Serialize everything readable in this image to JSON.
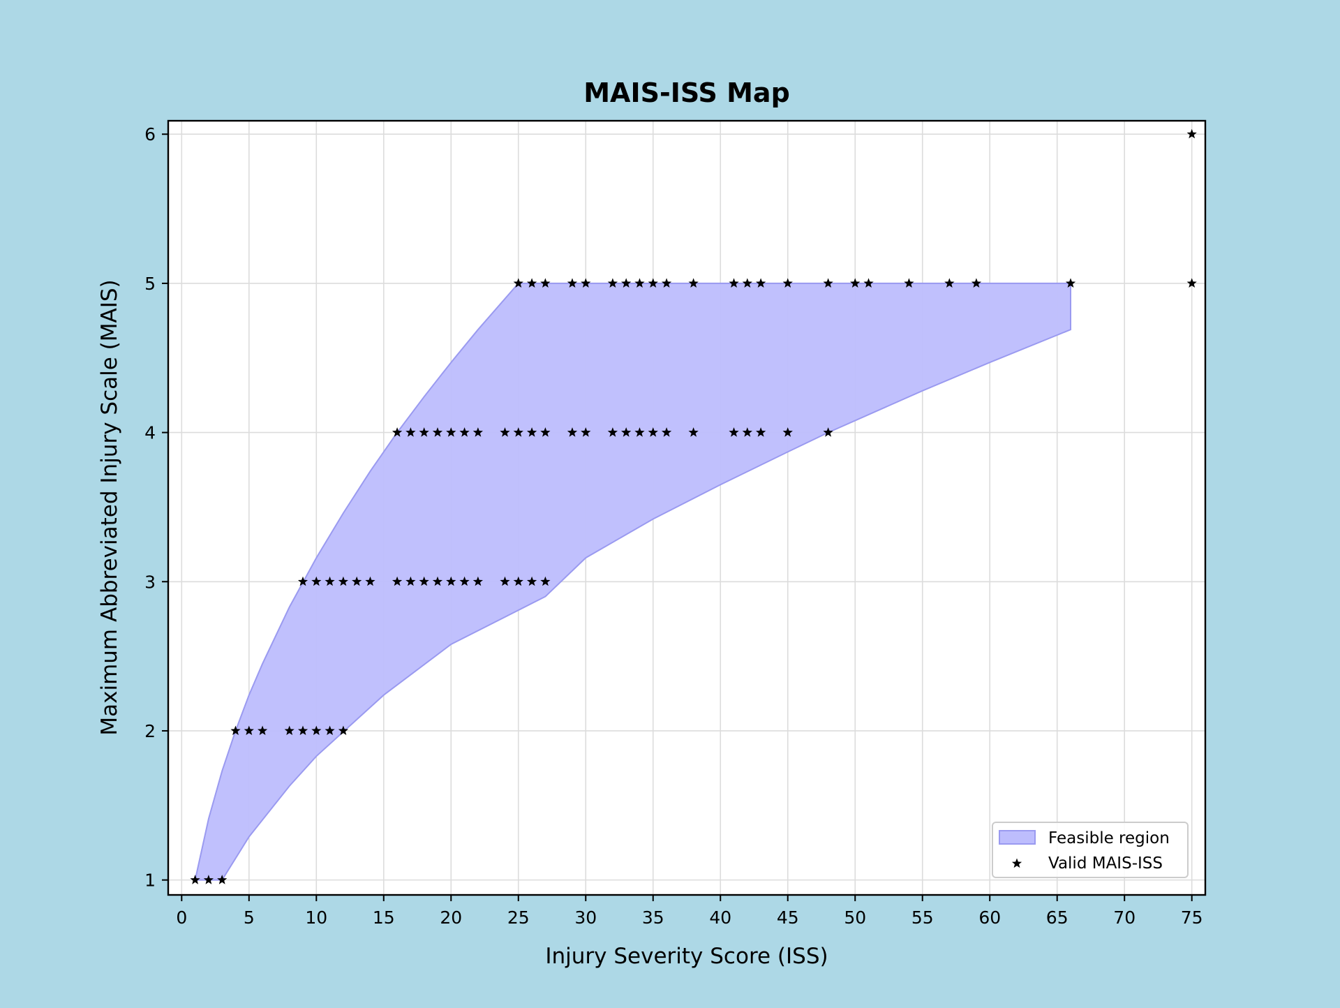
{
  "figure": {
    "background": "#add8e6"
  },
  "chart_data": {
    "type": "scatter",
    "title": "MAIS-ISS Map",
    "xlabel": "Injury Severity Score (ISS)",
    "ylabel": "Maximum Abbreviated Injury Scale (MAIS)",
    "xlim": [
      -1,
      76
    ],
    "ylim": [
      0.9,
      6.09
    ],
    "xticks": [
      0,
      5,
      10,
      15,
      20,
      25,
      30,
      35,
      40,
      45,
      50,
      55,
      60,
      65,
      70,
      75
    ],
    "xtick_labels": [
      "0",
      "5",
      "10",
      "15",
      "20",
      "25",
      "30",
      "35",
      "40",
      "45",
      "50",
      "55",
      "60",
      "65",
      "70",
      "75"
    ],
    "yticks": [
      1,
      2,
      3,
      4,
      5,
      6
    ],
    "ytick_labels": [
      "1",
      "2",
      "3",
      "4",
      "5",
      "6"
    ],
    "grid": true,
    "legend": {
      "position": "lower-right",
      "entries": [
        "Feasible region",
        "Valid MAIS-ISS"
      ]
    },
    "colors": {
      "feasible_fill": "#bdbdfd",
      "feasible_edge": "#9a9af0",
      "marker": "#000000",
      "grid": "#dcdcdc"
    },
    "feasible_region": {
      "name": "Feasible region",
      "upper": {
        "x": [
          1,
          2,
          3,
          4,
          5,
          6,
          8,
          10,
          12,
          14,
          16,
          18,
          20,
          22,
          25,
          66
        ],
        "y": [
          1.0,
          1.41,
          1.73,
          2.0,
          2.24,
          2.45,
          2.83,
          3.16,
          3.46,
          3.74,
          4.0,
          4.24,
          4.47,
          4.69,
          5.0,
          5.0
        ]
      },
      "lower": {
        "x": [
          3,
          5,
          8,
          10,
          15,
          20,
          27,
          30,
          35,
          40,
          45,
          48,
          55,
          60,
          66
        ],
        "y": [
          1.0,
          1.29,
          1.63,
          1.83,
          2.24,
          2.58,
          2.9,
          3.16,
          3.42,
          3.65,
          3.87,
          4.0,
          4.28,
          4.47,
          4.69
        ]
      }
    },
    "series": [
      {
        "name": "Valid MAIS-ISS",
        "marker": "star",
        "points": [
          [
            1,
            1
          ],
          [
            2,
            1
          ],
          [
            3,
            1
          ],
          [
            4,
            2
          ],
          [
            5,
            2
          ],
          [
            6,
            2
          ],
          [
            8,
            2
          ],
          [
            9,
            2
          ],
          [
            10,
            2
          ],
          [
            11,
            2
          ],
          [
            12,
            2
          ],
          [
            9,
            3
          ],
          [
            10,
            3
          ],
          [
            11,
            3
          ],
          [
            12,
            3
          ],
          [
            13,
            3
          ],
          [
            14,
            3
          ],
          [
            16,
            3
          ],
          [
            17,
            3
          ],
          [
            18,
            3
          ],
          [
            19,
            3
          ],
          [
            20,
            3
          ],
          [
            21,
            3
          ],
          [
            22,
            3
          ],
          [
            24,
            3
          ],
          [
            25,
            3
          ],
          [
            26,
            3
          ],
          [
            27,
            3
          ],
          [
            16,
            4
          ],
          [
            17,
            4
          ],
          [
            18,
            4
          ],
          [
            19,
            4
          ],
          [
            20,
            4
          ],
          [
            21,
            4
          ],
          [
            22,
            4
          ],
          [
            24,
            4
          ],
          [
            25,
            4
          ],
          [
            26,
            4
          ],
          [
            27,
            4
          ],
          [
            29,
            4
          ],
          [
            30,
            4
          ],
          [
            32,
            4
          ],
          [
            33,
            4
          ],
          [
            34,
            4
          ],
          [
            35,
            4
          ],
          [
            36,
            4
          ],
          [
            38,
            4
          ],
          [
            41,
            4
          ],
          [
            42,
            4
          ],
          [
            43,
            4
          ],
          [
            45,
            4
          ],
          [
            48,
            4
          ],
          [
            25,
            5
          ],
          [
            26,
            5
          ],
          [
            27,
            5
          ],
          [
            29,
            5
          ],
          [
            30,
            5
          ],
          [
            32,
            5
          ],
          [
            33,
            5
          ],
          [
            34,
            5
          ],
          [
            35,
            5
          ],
          [
            36,
            5
          ],
          [
            38,
            5
          ],
          [
            41,
            5
          ],
          [
            42,
            5
          ],
          [
            43,
            5
          ],
          [
            45,
            5
          ],
          [
            48,
            5
          ],
          [
            50,
            5
          ],
          [
            51,
            5
          ],
          [
            54,
            5
          ],
          [
            57,
            5
          ],
          [
            59,
            5
          ],
          [
            66,
            5
          ],
          [
            75,
            5
          ],
          [
            75,
            6
          ]
        ]
      }
    ]
  }
}
